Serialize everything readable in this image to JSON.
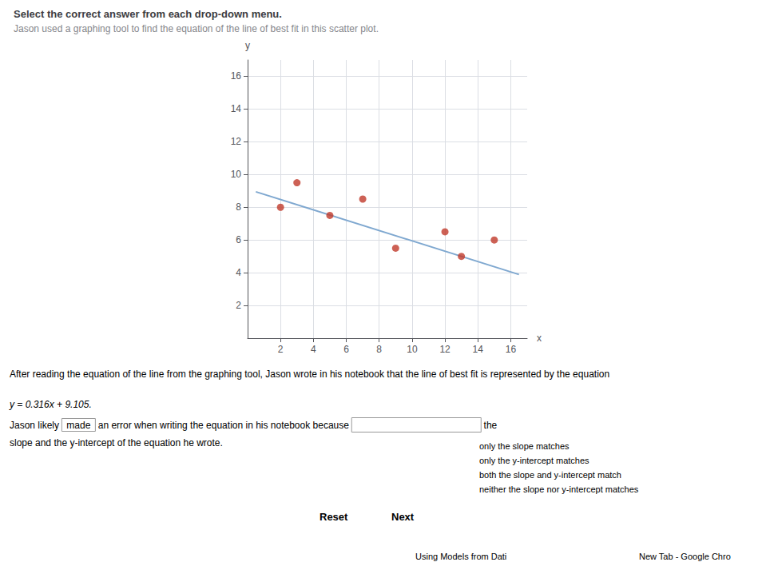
{
  "chart_data": {
    "type": "scatter",
    "title": "Select the correct answer from each drop-down menu.",
    "subtitle": "Jason used a graphing tool to find the equation of the line of best fit in this scatter plot.",
    "x_label": "x",
    "y_label": "y",
    "series": [
      {
        "type": "scatter",
        "color": "#c0392b",
        "x": [
          2,
          3,
          5,
          7,
          9,
          12,
          13,
          15
        ],
        "values": [
          8,
          9.5,
          7.5,
          8.5,
          5.5,
          6.5,
          5,
          6
        ]
      },
      {
        "type": "line",
        "color": "#7fa8d0",
        "x": [
          0.5,
          16.5
        ],
        "values": [
          8.947,
          3.891
        ]
      }
    ],
    "xlim": [
      0,
      17
    ],
    "ylim": [
      0,
      17
    ],
    "xticks": [
      2,
      4,
      6,
      8,
      10,
      12,
      14,
      16
    ],
    "yticks": [
      2,
      4,
      6,
      8,
      10,
      12,
      14,
      16
    ],
    "grid": true,
    "annotations": [
      "After reading the equation of the line from the graphing tool, Jason wrote in his notebook that the line of best fit is represented by the equation",
      "y = 0.316x + 9.105.",
      "Jason likely",
      "made",
      "an error when writing the equation in his notebook because",
      "the",
      "slope and the y-intercept of the equation he wrote.",
      "only the slope matches",
      "only the y-intercept matches",
      "both the slope and y-intercept match",
      "neither the slope nor y-intercept matches",
      "Reset",
      "Next",
      "Using Models from Dati",
      "New Tab - Google Chro"
    ]
  }
}
